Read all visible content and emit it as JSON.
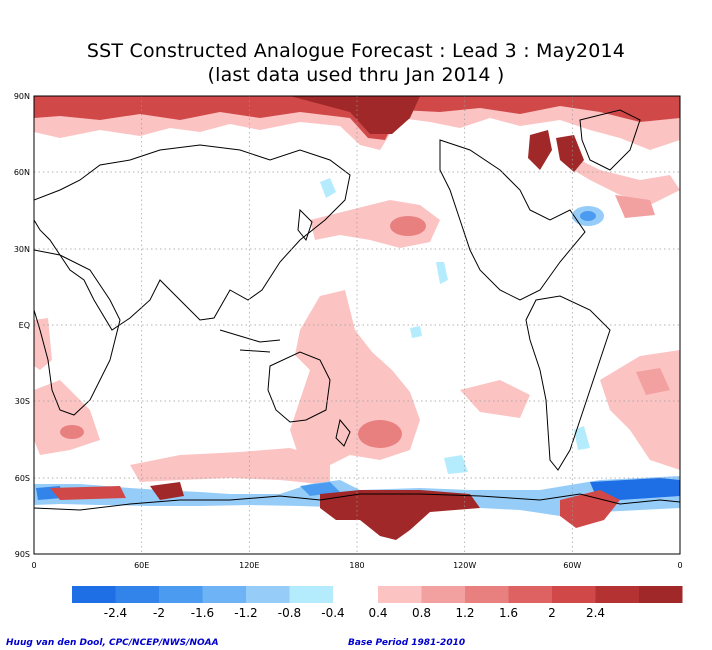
{
  "title": {
    "line1": "SST Constructed Analogue Forecast : Lead 3 : May2014",
    "line2": "(last data used thru Jan 2014 )"
  },
  "axes": {
    "lat_labels": [
      "90N",
      "60N",
      "30N",
      "EQ",
      "30S",
      "60S",
      "90S"
    ],
    "lon_labels": [
      "0",
      "60E",
      "120E",
      "180",
      "120W",
      "60W",
      "0"
    ]
  },
  "colorbar": {
    "ticks": [
      "-2.4",
      "-2",
      "-1.6",
      "-1.2",
      "-0.8",
      "-0.4",
      "0.4",
      "0.8",
      "1.2",
      "1.6",
      "2",
      "2.4"
    ],
    "negative_colors": [
      "#1e6ee6",
      "#3284ea",
      "#4b9bf0",
      "#6eb3f5",
      "#96ccf8",
      "#b4ecfd"
    ],
    "positive_colors": [
      "#fcc3c3",
      "#f3a0a0",
      "#e88080",
      "#df6262",
      "#d04848",
      "#b53232",
      "#a02828"
    ]
  },
  "footer": {
    "credit": "Huug van den Dool, CPC/NCEP/NWS/NOAA",
    "base_period": "Base Period 1981-2010"
  }
}
